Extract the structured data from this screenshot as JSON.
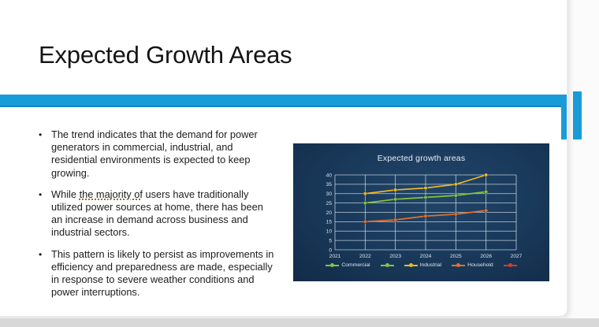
{
  "slide": {
    "title": "Expected Growth Areas",
    "bullets": [
      {
        "text": "The trend indicates that the demand for power generators in commercial, industrial, and residential environments is expected to keep growing."
      },
      {
        "pre": "While ",
        "underlined": "the majority of",
        "post": " users have traditionally utilized power sources at home, there has been an increase in demand across business and industrial sectors."
      },
      {
        "text": "This pattern is likely to persist as improvements in efficiency and preparedness are made, especially in response to severe weather conditions and power interruptions."
      }
    ]
  },
  "colors": {
    "accent_blue": "#189cd8",
    "chart_bg": "#1a3a5c",
    "bottom_strip": "#d8d8d8",
    "commercial_green": "#82c341",
    "industrial_yellow": "#ecb823",
    "household_orange": "#e2702e",
    "extra_red": "#d93a2b",
    "gridline": "#d9e4ee"
  },
  "chart_data": {
    "type": "line",
    "title": "Expected growth areas",
    "x": [
      2022,
      2023,
      2024,
      2025,
      2026
    ],
    "series": [
      {
        "name": "Commercial",
        "color": "#82c341",
        "values": [
          25,
          27,
          28,
          29,
          31
        ]
      },
      {
        "name": "Industrial",
        "color": "#ecb823",
        "values": [
          30,
          32,
          33,
          35,
          40
        ]
      },
      {
        "name": "Household",
        "color": "#e2702e",
        "values": [
          15,
          16,
          18,
          19,
          21
        ]
      }
    ],
    "legend": [
      {
        "label": "Commercial",
        "color": "#82c341"
      },
      {
        "label": "",
        "color": "#82c341"
      },
      {
        "label": "Industrial",
        "color": "#ecb823"
      },
      {
        "label": "Household",
        "color": "#e2702e"
      },
      {
        "label": "",
        "color": "#d93a2b"
      }
    ],
    "xlabel": "",
    "ylabel": "",
    "xlim": [
      2021,
      2027
    ],
    "ylim": [
      0,
      40
    ],
    "xticks": [
      2021,
      2022,
      2023,
      2024,
      2025,
      2026,
      2027
    ],
    "yticks": [
      0,
      5,
      10,
      15,
      20,
      25,
      30,
      35,
      40
    ],
    "grid": true,
    "legend_position": "bottom"
  }
}
